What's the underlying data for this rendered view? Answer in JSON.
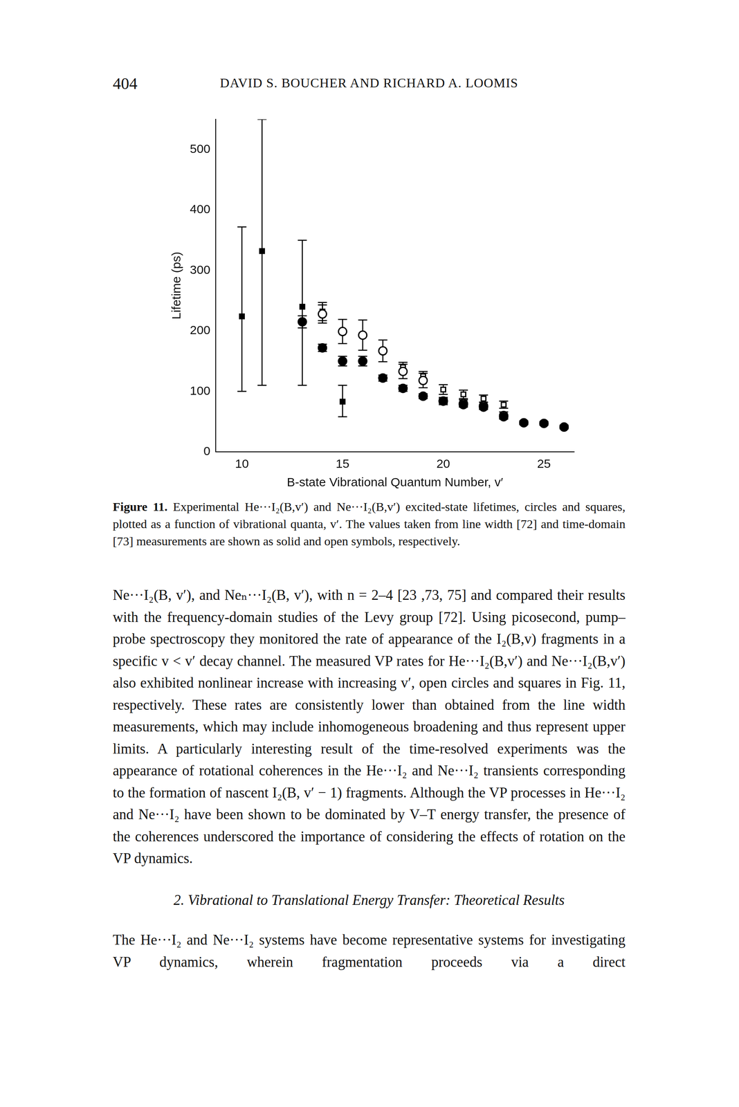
{
  "header": {
    "page_number": "404",
    "running_title": "DAVID S. BOUCHER AND RICHARD A. LOOMIS"
  },
  "chart_data": {
    "type": "scatter",
    "x_label": "B-state Vibrational Quantum Number, v′",
    "y_label": "Lifetime (ps)",
    "xlim": [
      8.7,
      26.5
    ],
    "xticks": [
      10,
      15,
      20,
      25
    ],
    "ylim": [
      0,
      550
    ],
    "yticks": [
      0,
      100,
      200,
      300,
      400,
      500
    ],
    "grid": false,
    "series": [
      {
        "marker": "filled_square",
        "color": "#000000",
        "x": [
          10,
          11,
          13,
          15
        ],
        "values": [
          224,
          332,
          240,
          83
        ],
        "errors": [
          [
            124,
            148
          ],
          [
            222,
            218
          ],
          [
            130,
            110
          ],
          [
            25,
            27
          ]
        ]
      },
      {
        "marker": "filled_circle",
        "color": "#000000",
        "x": [
          13,
          14,
          15,
          16,
          17,
          18,
          19,
          20,
          21,
          22,
          23,
          24,
          25,
          26
        ],
        "values": [
          215,
          172,
          150,
          150,
          122,
          105,
          92,
          84,
          78,
          74,
          58,
          48,
          47,
          41
        ],
        "errors": [
          [
            10,
            10
          ],
          [
            6,
            6
          ],
          [
            8,
            8
          ],
          [
            8,
            8
          ],
          [
            5,
            5
          ],
          [
            5,
            5
          ],
          [
            4,
            4
          ],
          [
            4,
            4
          ],
          [
            3,
            3
          ],
          [
            3,
            3
          ],
          [
            3,
            3
          ],
          [
            3,
            3
          ],
          [
            3,
            3
          ],
          [
            3,
            3
          ]
        ]
      },
      {
        "marker": "open_circle",
        "color": "#000000",
        "x": [
          14,
          15,
          16,
          17,
          18,
          19,
          20,
          21,
          22,
          23
        ],
        "values": [
          228,
          199,
          193,
          167,
          133,
          118,
          84,
          80,
          76,
          60
        ],
        "errors": [
          [
            15,
            15
          ],
          [
            20,
            20
          ],
          [
            25,
            25
          ],
          [
            18,
            18
          ],
          [
            12,
            12
          ],
          [
            12,
            12
          ],
          [
            6,
            6
          ],
          [
            6,
            6
          ],
          [
            6,
            6
          ],
          [
            6,
            6
          ]
        ]
      },
      {
        "marker": "open_square",
        "color": "#000000",
        "x": [
          14,
          18,
          19,
          20,
          21,
          22,
          23
        ],
        "values": [
          232,
          140,
          125,
          103,
          95,
          88,
          78
        ],
        "errors": [
          [
            15,
            15
          ],
          [
            8,
            8
          ],
          [
            8,
            8
          ],
          [
            8,
            8
          ],
          [
            7,
            7
          ],
          [
            6,
            6
          ],
          [
            6,
            6
          ]
        ]
      }
    ]
  },
  "caption": {
    "label": "Figure 11.",
    "text": "Experimental He···I₂(B,v′) and Ne···I₂(B,v′) excited-state lifetimes, circles and squares, plotted as a function of vibrational quanta, v′. The values taken from line width [72] and time-domain [73] measurements are shown as solid and open symbols, respectively."
  },
  "body": [
    {
      "kind": "paragraph",
      "text": "Ne···I₂(B, v′), and Neₙ···I₂(B, v′), with n = 2–4 [23 ,73, 75] and compared their results with the frequency-domain studies of the Levy group [72]. Using picosecond, pump–probe spectroscopy they monitored the rate of appearance of the I₂(B,v) fragments in a specific v < v′ decay channel. The measured VP rates for He···I₂(B,v′) and Ne···I₂(B,v′) also exhibited nonlinear increase with increasing v′, open circles and squares in Fig. 11, respectively. These rates are consistently lower than obtained from the line width measurements, which may include inhomogeneous broadening and thus represent upper limits. A particularly interesting result of the time-resolved experiments was the appearance of rotational coherences in the He···I₂ and Ne···I₂ transients corresponding to the formation of nascent I₂(B, v′ − 1) fragments. Although the VP processes in He···I₂ and Ne···I₂ have been shown to be dominated by V–T energy transfer, the presence of the coherences underscored the importance of considering the effects of rotation on the VP dynamics."
    },
    {
      "kind": "heading",
      "text": "2. Vibrational to Translational Energy Transfer: Theoretical Results"
    },
    {
      "kind": "paragraph",
      "text": "The He···I₂ and Ne···I₂ systems have become representative systems for investigating VP dynamics, wherein fragmentation proceeds via a direct"
    }
  ]
}
